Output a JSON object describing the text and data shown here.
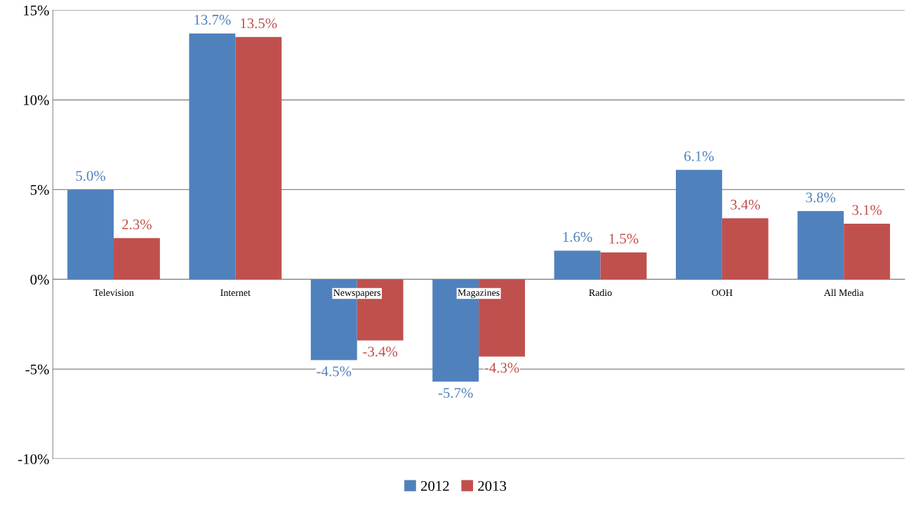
{
  "chart_data": {
    "type": "bar",
    "categories": [
      "Television",
      "Internet",
      "Newspapers",
      "Magazines",
      "Radio",
      "OOH",
      "All Media"
    ],
    "series": [
      {
        "name": "2012",
        "color": "#4f81bd",
        "values": [
          5.0,
          13.7,
          -4.5,
          -5.7,
          1.6,
          6.1,
          3.8
        ],
        "value_labels": [
          "5.0%",
          "13.7%",
          "-4.5%",
          "-5.7%",
          "1.6%",
          "6.1%",
          "3.8%"
        ]
      },
      {
        "name": "2013",
        "color": "#c0504d",
        "values": [
          2.3,
          13.5,
          -3.4,
          -4.3,
          1.5,
          3.4,
          3.1
        ],
        "value_labels": [
          "2.3%",
          "13.5%",
          "-3.4%",
          "-4.3%",
          "1.5%",
          "3.4%",
          "3.1%"
        ]
      }
    ],
    "ylim": [
      -10,
      15
    ],
    "yticks": [
      {
        "value": -10,
        "label": "-10%"
      },
      {
        "value": -5,
        "label": "-5%"
      },
      {
        "value": 0,
        "label": "0%"
      },
      {
        "value": 5,
        "label": "5%"
      },
      {
        "value": 10,
        "label": "10%"
      },
      {
        "value": 15,
        "label": "15%"
      }
    ],
    "grid": "y",
    "legend": "bottom"
  }
}
